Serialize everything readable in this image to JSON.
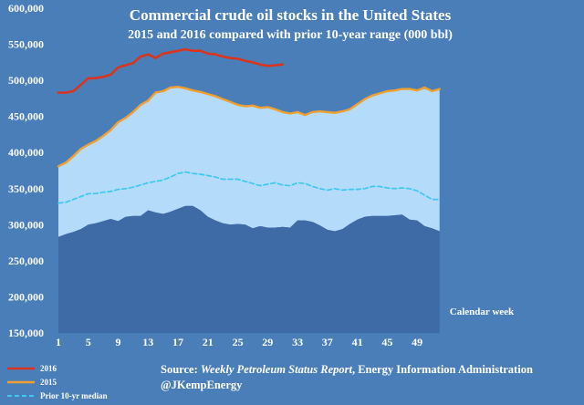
{
  "chart_data": {
    "type": "area",
    "title": "Commercial crude oil stocks in the United States",
    "subtitle": "2015 and 2016 compared with prior 10-year range (000 bbl)",
    "xlabel": "Calendar week",
    "ylim": [
      150000,
      600000
    ],
    "y_ticks": [
      "150,000",
      "200,000",
      "250,000",
      "300,000",
      "350,000",
      "400,000",
      "450,000",
      "500,000",
      "550,000",
      "600,000"
    ],
    "x_ticks": [
      "1",
      "5",
      "9",
      "13",
      "17",
      "21",
      "25",
      "29",
      "33",
      "37",
      "41",
      "45",
      "49"
    ],
    "x_tick_values": [
      1,
      5,
      9,
      13,
      17,
      21,
      25,
      29,
      33,
      37,
      41,
      45,
      49
    ],
    "weeks": [
      1,
      2,
      3,
      4,
      5,
      6,
      7,
      8,
      9,
      10,
      11,
      12,
      13,
      14,
      15,
      16,
      17,
      18,
      19,
      20,
      21,
      22,
      23,
      24,
      25,
      26,
      27,
      28,
      29,
      30,
      31,
      32,
      33,
      34,
      35,
      36,
      37,
      38,
      39,
      40,
      41,
      42,
      43,
      44,
      45,
      46,
      47,
      48,
      49,
      50,
      51,
      52
    ],
    "range_min": [
      283000,
      287000,
      290000,
      294000,
      300000,
      302000,
      305000,
      308000,
      305000,
      311000,
      312000,
      312000,
      320000,
      317000,
      315000,
      318000,
      322000,
      326000,
      326000,
      320000,
      311000,
      306000,
      302000,
      300000,
      301000,
      300000,
      295000,
      298000,
      296000,
      296000,
      297000,
      296000,
      306000,
      306000,
      304000,
      299000,
      293000,
      291000,
      294000,
      301000,
      307000,
      311000,
      312000,
      312000,
      312000,
      313000,
      314000,
      307000,
      306000,
      298000,
      295000,
      291000
    ],
    "range_max": [
      381000,
      386000,
      395000,
      405000,
      411000,
      416000,
      423000,
      431000,
      442000,
      448000,
      456000,
      466000,
      472000,
      483000,
      485000,
      490000,
      491000,
      489000,
      486000,
      484000,
      481000,
      478000,
      474000,
      470000,
      466000,
      464000,
      465000,
      462000,
      463000,
      460000,
      456000,
      454000,
      456000,
      452000,
      456000,
      457000,
      456000,
      455000,
      457000,
      460000,
      467000,
      474000,
      479000,
      482000,
      485000,
      486000,
      488000,
      488000,
      486000,
      488000,
      485000,
      488000
    ],
    "series": [
      {
        "name": "2016",
        "color": "#d9351e",
        "values": [
          483000,
          483000,
          485000,
          494000,
          503000,
          503000,
          505000,
          508000,
          518000,
          521000,
          524000,
          533000,
          536000,
          531000,
          537000,
          539000,
          541000,
          543000,
          541000,
          541000,
          537000,
          536000,
          533000,
          531000,
          530000,
          527000,
          525000,
          522000,
          520000,
          521000,
          522000
        ]
      },
      {
        "name": "2015",
        "color": "#f0a030",
        "values": [
          381000,
          386000,
          395000,
          405000,
          411000,
          416000,
          423000,
          431000,
          442000,
          448000,
          456000,
          466000,
          472000,
          483000,
          485000,
          490000,
          491000,
          489000,
          486000,
          484000,
          481000,
          478000,
          474000,
          470000,
          466000,
          464000,
          465000,
          462000,
          463000,
          460000,
          456000,
          454000,
          456000,
          452000,
          456000,
          457000,
          456000,
          455000,
          457000,
          460000,
          467000,
          474000,
          479000,
          482000,
          485000,
          486000,
          488000,
          488000,
          486000,
          490000,
          485000,
          488000
        ]
      },
      {
        "name": "Prior 10-yr median",
        "color": "#3ec8f0",
        "values": [
          330000,
          331000,
          335000,
          339000,
          343000,
          343000,
          345000,
          346000,
          349000,
          350000,
          352000,
          355000,
          358000,
          360000,
          362000,
          366000,
          371000,
          373000,
          371000,
          370000,
          368000,
          366000,
          363000,
          363000,
          363000,
          360000,
          357000,
          354000,
          356000,
          358000,
          355000,
          354000,
          358000,
          357000,
          353000,
          350000,
          348000,
          350000,
          348000,
          349000,
          349000,
          350000,
          353000,
          353000,
          351000,
          350000,
          351000,
          350000,
          347000,
          341000,
          335000,
          335000
        ]
      }
    ],
    "colors": {
      "background": "#4a7eb9",
      "range_fill": "#b4dcfa",
      "below_range_fill": "#3e6aa6"
    }
  },
  "source": {
    "prefix": "Source: ",
    "report": "Weekly Petroleum Status Report",
    "suffix": ", Energy Information Administration",
    "handle": "@JKempEnergy"
  }
}
